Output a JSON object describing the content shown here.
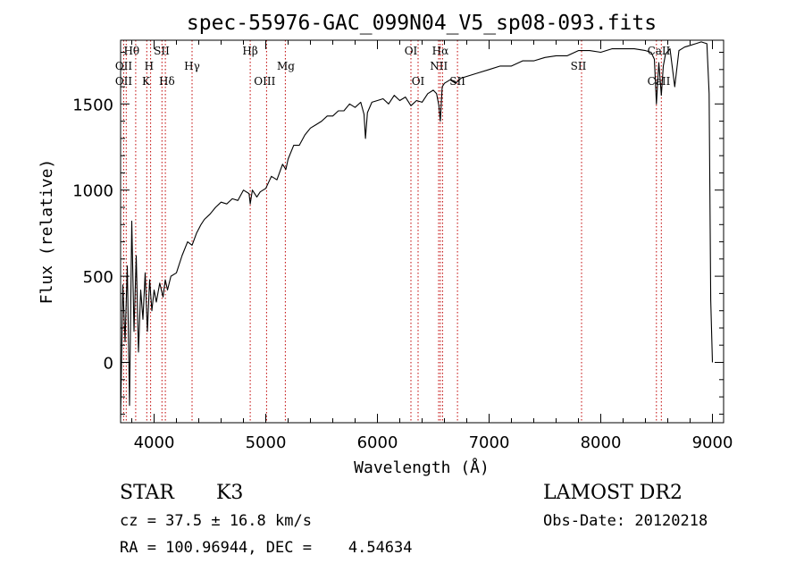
{
  "chart_data": {
    "type": "line",
    "title": "spec-55976-GAC_099N04_V5_sp08-093.fits",
    "xlabel": "Wavelength (Å)",
    "ylabel": "Flux (relative)",
    "xlim": [
      3700,
      9100
    ],
    "ylim": [
      -350,
      1870
    ],
    "x_ticks": [
      4000,
      5000,
      6000,
      7000,
      8000,
      9000
    ],
    "y_ticks": [
      0,
      500,
      1000,
      1500
    ],
    "grid": false,
    "series": [
      {
        "name": "flux",
        "x": [
          3700,
          3720,
          3740,
          3760,
          3780,
          3800,
          3820,
          3840,
          3860,
          3880,
          3900,
          3920,
          3940,
          3960,
          3980,
          4000,
          4020,
          4050,
          4080,
          4100,
          4120,
          4150,
          4200,
          4250,
          4300,
          4340,
          4380,
          4420,
          4450,
          4500,
          4550,
          4600,
          4650,
          4700,
          4750,
          4800,
          4850,
          4861,
          4880,
          4920,
          4950,
          5000,
          5050,
          5100,
          5150,
          5180,
          5200,
          5250,
          5300,
          5350,
          5400,
          5450,
          5500,
          5550,
          5600,
          5650,
          5700,
          5750,
          5800,
          5850,
          5880,
          5893,
          5910,
          5950,
          6000,
          6050,
          6100,
          6150,
          6200,
          6250,
          6300,
          6350,
          6400,
          6450,
          6500,
          6530,
          6550,
          6563,
          6580,
          6600,
          6650,
          6700,
          6750,
          6800,
          6900,
          7000,
          7100,
          7200,
          7300,
          7400,
          7500,
          7600,
          7700,
          7800,
          7900,
          8000,
          8100,
          8200,
          8300,
          8400,
          8450,
          8480,
          8498,
          8520,
          8542,
          8560,
          8580,
          8620,
          8662,
          8700,
          8750,
          8800,
          8850,
          8900,
          8950,
          8970,
          8985,
          9000
        ],
        "values": [
          -320,
          450,
          120,
          560,
          -250,
          820,
          180,
          620,
          60,
          420,
          250,
          520,
          180,
          480,
          300,
          420,
          350,
          460,
          380,
          480,
          420,
          500,
          520,
          620,
          700,
          680,
          750,
          800,
          830,
          860,
          900,
          930,
          920,
          950,
          940,
          1000,
          980,
          920,
          1000,
          960,
          990,
          1010,
          1080,
          1060,
          1150,
          1120,
          1180,
          1260,
          1260,
          1320,
          1360,
          1380,
          1400,
          1430,
          1430,
          1460,
          1460,
          1500,
          1480,
          1510,
          1440,
          1300,
          1450,
          1510,
          1520,
          1530,
          1500,
          1550,
          1520,
          1540,
          1490,
          1520,
          1510,
          1560,
          1580,
          1560,
          1490,
          1400,
          1600,
          1620,
          1640,
          1620,
          1650,
          1660,
          1680,
          1700,
          1720,
          1720,
          1750,
          1750,
          1770,
          1780,
          1780,
          1810,
          1810,
          1800,
          1820,
          1820,
          1820,
          1810,
          1800,
          1760,
          1500,
          1740,
          1550,
          1720,
          1790,
          1820,
          1600,
          1810,
          1830,
          1840,
          1850,
          1860,
          1850,
          1560,
          360,
          0
        ]
      }
    ],
    "lines": {
      "positions": [
        3727,
        3750,
        3835,
        3934,
        3969,
        4070,
        4101,
        4340,
        4861,
        5007,
        5175,
        6300,
        6364,
        6548,
        6563,
        6583,
        6717,
        7828,
        8498,
        8542
      ],
      "labels": [
        {
          "text": "Hθ",
          "x": 3798,
          "row": 1
        },
        {
          "text": "OII",
          "x": 3728,
          "row": 2
        },
        {
          "text": "OII",
          "x": 3728,
          "row": 3
        },
        {
          "text": "H",
          "x": 3955,
          "row": 2
        },
        {
          "text": "K",
          "x": 3928,
          "row": 3
        },
        {
          "text": "SII",
          "x": 4068,
          "row": 1
        },
        {
          "text": "Hδ",
          "x": 4115,
          "row": 3
        },
        {
          "text": "Hγ",
          "x": 4340,
          "row": 2
        },
        {
          "text": "Hβ",
          "x": 4861,
          "row": 1
        },
        {
          "text": "OIII",
          "x": 4990,
          "row": 3
        },
        {
          "text": "Mg",
          "x": 5180,
          "row": 2
        },
        {
          "text": "OI",
          "x": 6300,
          "row": 1
        },
        {
          "text": "OI",
          "x": 6364,
          "row": 3
        },
        {
          "text": "Hα",
          "x": 6563,
          "row": 1
        },
        {
          "text": "NII",
          "x": 6550,
          "row": 2
        },
        {
          "text": "SII",
          "x": 6717,
          "row": 3
        },
        {
          "text": "SII",
          "x": 7800,
          "row": 2
        },
        {
          "text": "CaII",
          "x": 8520,
          "row": 1
        },
        {
          "text": "CaII",
          "x": 8520,
          "row": 3
        }
      ]
    }
  },
  "info": {
    "class_label": "STAR",
    "subclass": "K3",
    "survey": "LAMOST DR2",
    "cz": "cz = 37.5 ± 16.8 km/s",
    "obs_date": "Obs-Date: 20120218",
    "coords": "RA = 100.96944, DEC =    4.54634"
  }
}
